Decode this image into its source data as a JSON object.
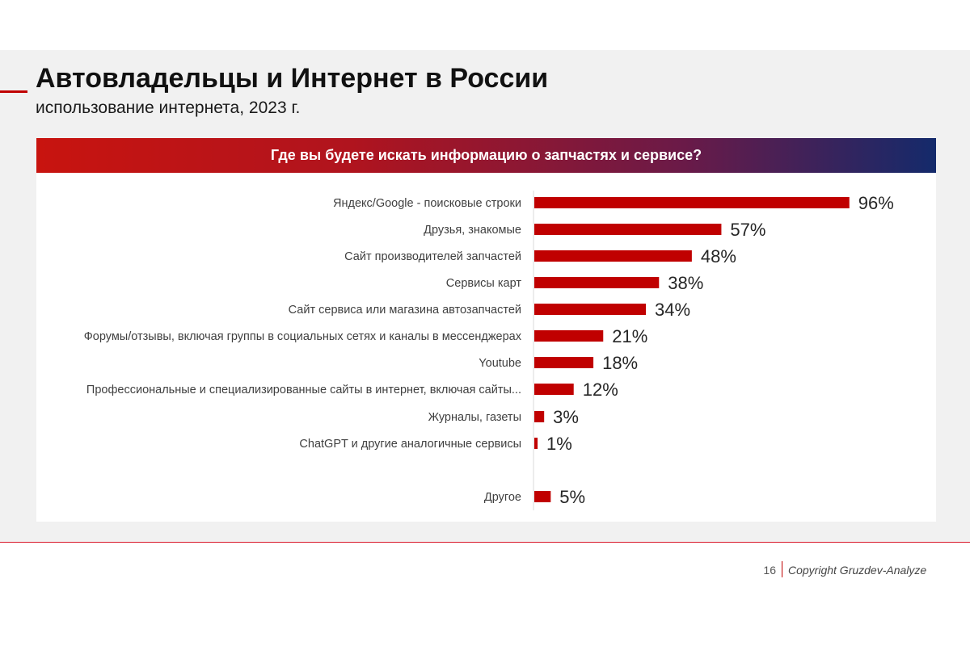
{
  "header": {
    "title": "Автовладельцы и Интернет в России",
    "subtitle": "использование интернета, 2023 г."
  },
  "chart_data": {
    "type": "bar",
    "orientation": "horizontal",
    "title": "Где вы будете искать информацию о запчастях и сервисе?",
    "categories": [
      "Яндекс/Google - поисковые строки",
      "Друзья, знакомые",
      "Сайт производителей запчастей",
      "Сервисы карт",
      "Сайт сервиса или магазина автозапчастей",
      "Форумы/отзывы, включая группы в социальных сетях и каналы в мессенджерах",
      "Youtube",
      "Профессиональные и специализированные сайты в интернет, включая сайты...",
      "Журналы, газеты",
      "ChatGPT и другие аналогичные сервисы",
      "Другое"
    ],
    "values": [
      96,
      57,
      48,
      38,
      34,
      21,
      18,
      12,
      3,
      1,
      5
    ],
    "value_labels": [
      "96%",
      "57%",
      "48%",
      "38%",
      "34%",
      "21%",
      "18%",
      "12%",
      "3%",
      "1%",
      "5%"
    ],
    "unit": "%",
    "xlim": [
      0,
      100
    ],
    "grid": false,
    "legend": "none",
    "bar_color": "#c00000"
  },
  "footer": {
    "page_number": "16",
    "copyright": "Copyright Gruzdev-Analyze"
  },
  "colors": {
    "accent": "#c00000",
    "banner_gradient": [
      "#c8140f",
      "#b0141e",
      "#6a1a48",
      "#142a6b"
    ]
  }
}
